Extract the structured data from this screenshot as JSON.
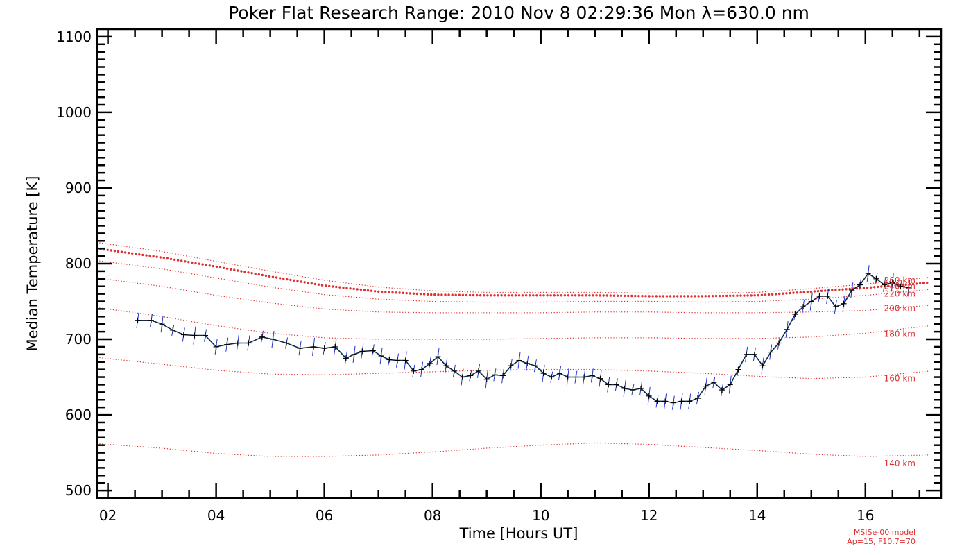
{
  "chart_data": {
    "type": "line",
    "title": "Poker Flat Research Range: 2010 Nov  8 02:29:36 Mon λ=630.0 nm",
    "xlabel": "Time [Hours UT]",
    "ylabel": "Median Temperature [K]",
    "xlim": [
      1.8,
      17.4
    ],
    "ylim": [
      490,
      1110
    ],
    "x_ticks": [
      2,
      4,
      6,
      8,
      10,
      12,
      14,
      16
    ],
    "x_tick_labels": [
      "02",
      "04",
      "06",
      "08",
      "10",
      "12",
      "14",
      "16"
    ],
    "y_ticks": [
      500,
      600,
      700,
      800,
      900,
      1000,
      1100
    ],
    "y_tick_labels": [
      "500",
      "600",
      "700",
      "800",
      "900",
      "1000",
      "1100"
    ],
    "grid": false,
    "colors": {
      "measured": "#0a2a4a",
      "error_bars": "#2233cc",
      "model": "#e03030",
      "model_bold": "#e03030"
    },
    "series": [
      {
        "x": [
          2.55,
          2.8,
          3.0,
          3.2,
          3.4,
          3.6,
          3.8,
          4.0,
          4.2,
          4.4,
          4.6,
          4.85,
          5.05,
          5.3,
          5.55,
          5.8,
          6.0,
          6.2,
          6.4,
          6.55,
          6.7,
          6.9,
          7.05,
          7.2,
          7.35,
          7.5,
          7.65,
          7.8,
          7.95,
          8.1,
          8.25,
          8.4,
          8.55,
          8.7,
          8.85,
          9.0,
          9.15,
          9.3,
          9.45,
          9.6,
          9.75,
          9.9,
          10.05,
          10.2,
          10.35,
          10.5,
          10.65,
          10.8,
          10.95,
          11.1,
          11.25,
          11.4,
          11.55,
          11.7,
          11.85,
          12.0,
          12.15,
          12.3,
          12.45,
          12.6,
          12.75,
          12.9,
          13.05,
          13.2,
          13.35,
          13.5,
          13.65,
          13.8,
          13.95,
          14.1,
          14.25,
          14.4,
          14.55,
          14.7,
          14.85,
          15.0,
          15.15,
          15.3,
          15.45,
          15.6,
          15.75,
          15.9,
          16.05,
          16.2,
          16.35,
          16.5,
          16.65,
          16.8
        ],
        "values": [
          725,
          725,
          720,
          712,
          706,
          705,
          705,
          690,
          693,
          695,
          695,
          703,
          700,
          695,
          688,
          690,
          688,
          690,
          675,
          680,
          684,
          685,
          678,
          673,
          672,
          672,
          658,
          660,
          668,
          677,
          665,
          658,
          650,
          652,
          658,
          647,
          653,
          652,
          665,
          672,
          668,
          665,
          655,
          650,
          655,
          650,
          650,
          650,
          652,
          648,
          640,
          640,
          635,
          633,
          635,
          625,
          618,
          618,
          616,
          618,
          618,
          622,
          638,
          643,
          633,
          640,
          660,
          680,
          680,
          665,
          683,
          695,
          713,
          733,
          743,
          750,
          757,
          757,
          743,
          747,
          765,
          772,
          787,
          780,
          772,
          775,
          770,
          768
        ]
      }
    ],
    "model_curves": [
      {
        "label": "140 km",
        "x": [
          1.8,
          3,
          4,
          5,
          6,
          7,
          8,
          9,
          10,
          11,
          12,
          13,
          14,
          15,
          16,
          17.2
        ],
        "values": [
          562,
          556,
          549,
          545,
          545,
          547,
          551,
          556,
          560,
          563,
          561,
          557,
          553,
          548,
          545,
          547
        ]
      },
      {
        "label": "160 km",
        "x": [
          1.8,
          3,
          4,
          5,
          6,
          7,
          8,
          9,
          10,
          11,
          12,
          13,
          14,
          15,
          16,
          17.2
        ],
        "values": [
          676,
          667,
          659,
          654,
          653,
          655,
          657,
          659,
          660,
          660,
          658,
          655,
          651,
          648,
          650,
          658
        ]
      },
      {
        "label": "180 km",
        "x": [
          1.8,
          3,
          4,
          5,
          6,
          7,
          8,
          9,
          10,
          11,
          12,
          13,
          14,
          15,
          16,
          17.2
        ],
        "values": [
          742,
          730,
          718,
          708,
          702,
          700,
          700,
          700,
          701,
          702,
          702,
          701,
          701,
          703,
          708,
          718
        ]
      },
      {
        "label": "200 km",
        "x": [
          1.8,
          3,
          4,
          5,
          6,
          7,
          8,
          9,
          10,
          11,
          12,
          13,
          14,
          15,
          16,
          17.2
        ],
        "values": [
          781,
          770,
          758,
          748,
          740,
          736,
          735,
          735,
          735,
          736,
          736,
          735,
          735,
          736,
          738,
          745
        ]
      },
      {
        "label": "220 km",
        "x": [
          1.8,
          3,
          4,
          5,
          6,
          7,
          8,
          9,
          10,
          11,
          12,
          13,
          14,
          15,
          16,
          17.2
        ],
        "values": [
          804,
          793,
          781,
          769,
          759,
          753,
          750,
          749,
          749,
          750,
          750,
          749,
          750,
          753,
          758,
          766
        ]
      },
      {
        "label": "240 km",
        "bold": true,
        "x": [
          1.8,
          3,
          4,
          5,
          6,
          7,
          8,
          9,
          10,
          11,
          12,
          13,
          14,
          15,
          16,
          17.2
        ],
        "values": [
          820,
          808,
          796,
          783,
          771,
          763,
          759,
          758,
          758,
          758,
          757,
          757,
          758,
          763,
          768,
          775
        ]
      },
      {
        "label": "260 km",
        "x": [
          1.8,
          3,
          4,
          5,
          6,
          7,
          8,
          9,
          10,
          11,
          12,
          13,
          14,
          15,
          16,
          17.2
        ],
        "values": [
          828,
          816,
          803,
          790,
          778,
          769,
          764,
          762,
          762,
          762,
          761,
          761,
          762,
          767,
          773,
          782
        ]
      }
    ],
    "model_label_positions": [
      {
        "label": "140 km",
        "y": 536
      },
      {
        "label": "160 km",
        "y": 648
      },
      {
        "label": "180 km",
        "y": 707
      },
      {
        "label": "200 km",
        "y": 741
      },
      {
        "label": "220 km",
        "y": 760
      },
      {
        "label": "240 km",
        "y": 770
      },
      {
        "label": "260 km",
        "y": 778
      }
    ],
    "footnote_lines": [
      "MSISe-00 model",
      "Ap=15, F10.7=70"
    ]
  }
}
